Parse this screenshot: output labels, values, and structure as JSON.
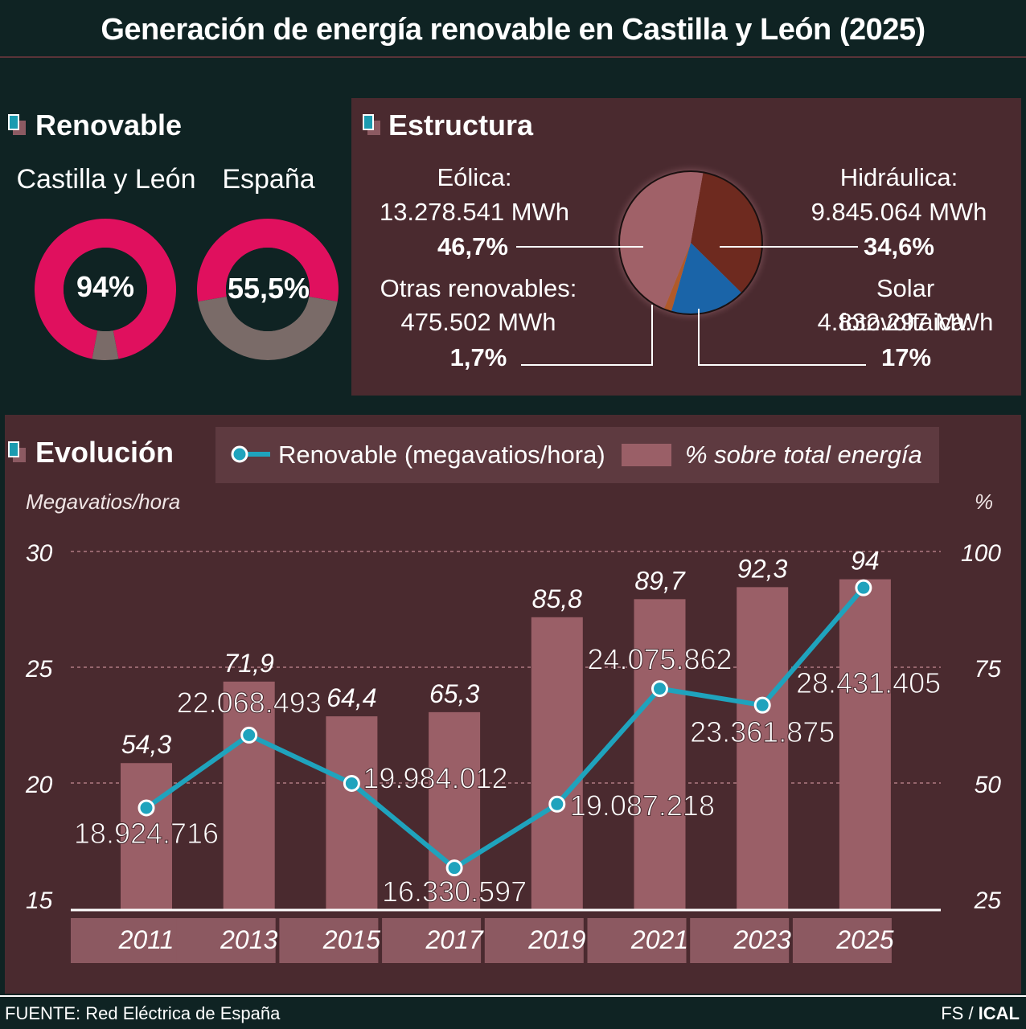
{
  "title": "Generación de energía renovable en Castilla y León (2025)",
  "renovable": {
    "section_title": "Renovable",
    "items": [
      {
        "label": "Castilla y León",
        "value": "94%",
        "share": 0.94
      },
      {
        "label": "España",
        "value": "55,5%",
        "share": 0.555
      }
    ],
    "colors": {
      "renewable": "#e0105e",
      "other": "#7a6b68"
    }
  },
  "estructura": {
    "section_title": "Estructura",
    "eolica": {
      "name": "Eólica:",
      "amount": "13.278.541 MWh",
      "pct": "46,7%"
    },
    "hidraulica": {
      "name": "Hidráulica:",
      "amount": "9.845.064 MWh",
      "pct": "34,6%"
    },
    "otras": {
      "name": "Otras renovables:",
      "amount": "475.502 MWh",
      "pct": "1,7%"
    },
    "solar": {
      "name": "Solar fotovoltaica:",
      "amount": "4.832.297 MWh",
      "pct": "17%"
    }
  },
  "chart_data": {
    "type": "pie",
    "values": [
      46.7,
      34.6,
      17,
      1.7
    ],
    "categories": [
      "Eólica",
      "Hidráulica",
      "Solar fotovoltaica",
      "Otras renovables"
    ],
    "colors": [
      "#a06168",
      "#6e2a1f",
      "#1a64a8",
      "#b05a2a"
    ]
  },
  "evolucion": {
    "section_title": "Evolución",
    "legend_line": "Renovable (megavatios/hora)",
    "legend_bar": "% sobre total energía",
    "left_axis_title": "Megavatios/hora",
    "right_axis_title": "%",
    "left_ticks": [
      "30",
      "25",
      "20",
      "15"
    ],
    "right_ticks": [
      "100",
      "75",
      "50",
      "25"
    ],
    "years": [
      "2011",
      "2013",
      "2015",
      "2017",
      "2019",
      "2021",
      "2023",
      "2025"
    ],
    "pct_values": [
      54.3,
      71.9,
      64.4,
      65.3,
      85.8,
      89.7,
      92.3,
      94
    ],
    "pct_labels": [
      "54,3",
      "71,9",
      "64,4",
      "65,3",
      "85,8",
      "89,7",
      "92,3",
      "94"
    ],
    "mwh_values": [
      18.924716,
      22.068493,
      19.984012,
      16.330597,
      19.087218,
      24.075862,
      23.361875,
      28.431405
    ],
    "mwh_labels": [
      "18.924.716",
      "22.068.493",
      "19.984.012",
      "16.330.597",
      "19.087.218",
      "24.075.862",
      "23.361.875",
      "28.431.405"
    ],
    "left_range": [
      15,
      30
    ],
    "right_range": [
      25,
      100
    ],
    "colors": {
      "bar": "#9a5f67",
      "line": "#1fa3bd",
      "year_band": "#8c5961"
    }
  },
  "footer": {
    "source": "FUENTE: Red Eléctrica de España",
    "credit_prefix": "FS / ",
    "credit_bold": "ICAL"
  }
}
